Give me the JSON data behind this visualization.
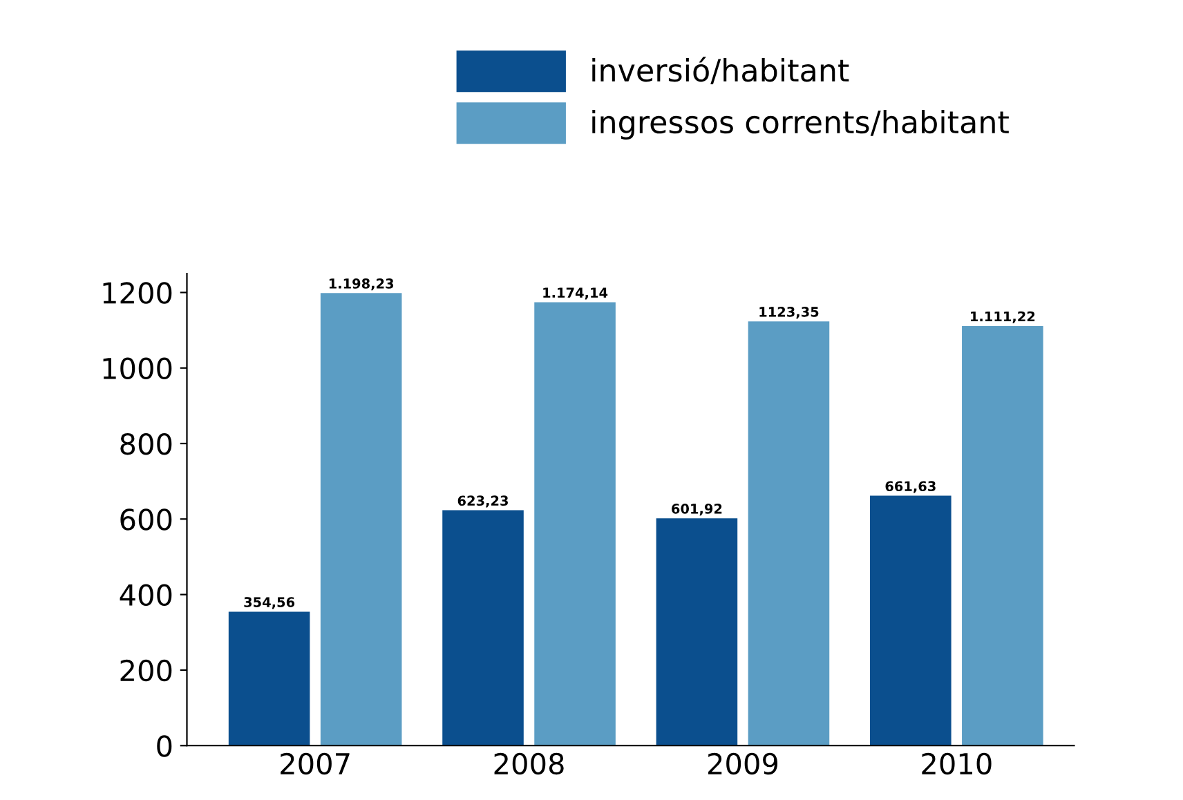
{
  "chart_data": {
    "type": "bar",
    "categories": [
      "2007",
      "2008",
      "2009",
      "2010"
    ],
    "series": [
      {
        "name": "inversió/habitant",
        "color": "#0b4f8e",
        "values": [
          354.56,
          623.23,
          601.92,
          661.63
        ],
        "value_labels": [
          "354,56",
          "623,23",
          "601,92",
          "661,63"
        ]
      },
      {
        "name": "ingressos corrents/habitant",
        "color": "#5b9dc4",
        "values": [
          1198.23,
          1174.14,
          1123.35,
          1111.22
        ],
        "value_labels": [
          "1.198,23",
          "1.174,14",
          "1123,35",
          "1.111,22"
        ]
      }
    ],
    "ylim": [
      0,
      1250
    ],
    "yticks": [
      0,
      200,
      400,
      600,
      800,
      1000,
      1200
    ],
    "grid": false,
    "legend": "top"
  }
}
